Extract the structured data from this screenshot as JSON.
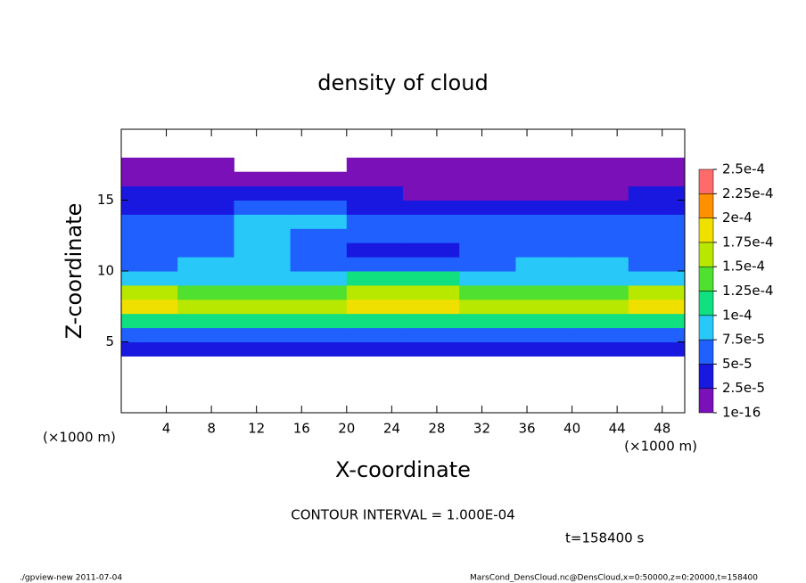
{
  "chart_data": {
    "type": "heatmap",
    "title": "density of cloud",
    "xlabel": "X-coordinate",
    "ylabel": "Z-coordinate",
    "x_unit_left": "(×1000 m)",
    "x_unit_right": "(×1000 m)",
    "xlim": [
      0,
      50
    ],
    "xticks": [
      4,
      8,
      12,
      16,
      20,
      24,
      28,
      32,
      36,
      40,
      44,
      48
    ],
    "ylim": [
      0,
      20
    ],
    "yticks": [
      5,
      10,
      15
    ],
    "x": [
      2.5,
      7.5,
      12.5,
      17.5,
      22.5,
      27.5,
      32.5,
      37.5,
      42.5,
      47.5
    ],
    "y": [
      0.5,
      1.5,
      2.5,
      3.5,
      4.5,
      5.5,
      6.5,
      7.5,
      8.5,
      9.5,
      10.5,
      11.5,
      12.5,
      13.5,
      14.5,
      15.5,
      16.5,
      17.5,
      18.5,
      19.5
    ],
    "z": [
      [
        null,
        null,
        null,
        null,
        null,
        null,
        null,
        null,
        null,
        null
      ],
      [
        null,
        null,
        null,
        null,
        null,
        null,
        null,
        null,
        null,
        null
      ],
      [
        null,
        null,
        null,
        null,
        null,
        null,
        null,
        null,
        null,
        null
      ],
      [
        null,
        null,
        null,
        null,
        null,
        null,
        null,
        null,
        null,
        null
      ],
      [
        3e-05,
        3e-05,
        3e-05,
        3e-05,
        3e-05,
        3e-05,
        3e-05,
        3e-05,
        3e-05,
        3e-05
      ],
      [
        5.5e-05,
        6e-05,
        6e-05,
        6e-05,
        6e-05,
        6e-05,
        5.5e-05,
        6.5e-05,
        6e-05,
        6e-05
      ],
      [
        0.00012,
        0.00011,
        0.00011,
        0.00012,
        0.00011,
        0.00012,
        0.00011,
        0.00011,
        0.00011,
        0.00012
      ],
      [
        0.00019,
        0.00017,
        0.00016,
        0.00017,
        0.00019,
        0.00019,
        0.00017,
        0.00016,
        0.00016,
        0.00018
      ],
      [
        0.00015,
        0.00014,
        0.00013,
        0.00014,
        0.00016,
        0.00016,
        0.00014,
        0.00013,
        0.00013,
        0.00015
      ],
      [
        9e-05,
        8e-05,
        8e-05,
        8.5e-05,
        0.000105,
        0.0001,
        9e-05,
        9e-05,
        8.5e-05,
        9e-05
      ],
      [
        7e-05,
        7.5e-05,
        8e-05,
        7e-05,
        6e-05,
        6e-05,
        7e-05,
        7.5e-05,
        8e-05,
        7e-05
      ],
      [
        6e-05,
        6.5e-05,
        7.5e-05,
        6e-05,
        4.5e-05,
        4.5e-05,
        6e-05,
        6.5e-05,
        7e-05,
        6e-05
      ],
      [
        6e-05,
        6.5e-05,
        8e-05,
        7e-05,
        5e-05,
        5e-05,
        6e-05,
        6e-05,
        6.5e-05,
        5.5e-05
      ],
      [
        5.5e-05,
        6e-05,
        8e-05,
        7.5e-05,
        6e-05,
        5.5e-05,
        5.5e-05,
        5e-05,
        5.5e-05,
        5e-05
      ],
      [
        4e-05,
        4.5e-05,
        5.5e-05,
        5.5e-05,
        4.5e-05,
        4e-05,
        3.5e-05,
        3.5e-05,
        4e-05,
        4e-05
      ],
      [
        2.5e-05,
        3e-05,
        3e-05,
        2.8e-05,
        2.6e-05,
        2.4e-05,
        2.2e-05,
        2.2e-05,
        2.4e-05,
        2.5e-05
      ],
      [
        1.5e-05,
        1.5e-05,
        1.5e-05,
        1.5e-05,
        1.5e-05,
        1.5e-05,
        1.5e-05,
        1.5e-05,
        1.5e-05,
        1.5e-05
      ],
      [
        1e-05,
        1e-05,
        null,
        null,
        1e-05,
        1e-05,
        1e-05,
        1e-05,
        1e-05,
        1e-05
      ],
      [
        null,
        null,
        null,
        null,
        null,
        null,
        null,
        null,
        null,
        null
      ],
      [
        null,
        null,
        null,
        null,
        null,
        null,
        null,
        null,
        null,
        null
      ]
    ],
    "colorbar": {
      "ticks": [
        1e-16,
        {
          "value": 2.5e-05,
          "label": "2.5e-5"
        },
        {
          "value": 5e-05,
          "label": "5e-5"
        },
        {
          "value": 7.5e-05,
          "label": "7.5e-5"
        },
        {
          "value": 0.0001,
          "label": "1e-4"
        },
        {
          "value": 0.000125,
          "label": "1.25e-4"
        },
        {
          "value": 0.00015,
          "label": "1.5e-4"
        },
        {
          "value": 0.000175,
          "label": "1.75e-4"
        },
        {
          "value": 0.0002,
          "label": "2e-4"
        },
        {
          "value": 0.000225,
          "label": "2.25e-4"
        },
        {
          "value": 0.00025,
          "label": "2.5e-4"
        }
      ],
      "colors": [
        "#7a10b8",
        "#1818e0",
        "#2060ff",
        "#28c8f8",
        "#10e080",
        "#50e030",
        "#b8e800",
        "#f0e000",
        "#ff9000",
        "#ff6a6a"
      ]
    },
    "annotation": "CONTOUR INTERVAL = 1.000E-04",
    "time_label": "t=158400 s",
    "footer_left": "./gpview-new  2011-07-04",
    "footer_right": "MarsCond_DensCloud.nc@DensCloud,x=0:50000,z=0:20000,t=158400"
  }
}
